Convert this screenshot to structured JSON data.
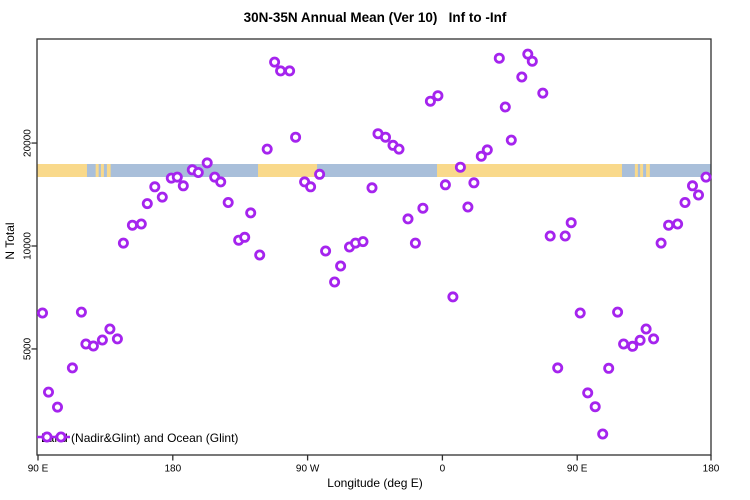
{
  "chart_data": {
    "type": "scatter",
    "title": "30N-35N Annual Mean (Ver 10)   Inf to -Inf",
    "xlabel": "Longitude (deg E)",
    "ylabel": "N Total",
    "x_axis": {
      "units": "deg E (wraps past 180 to 540)",
      "min": 89,
      "max": 540,
      "ticks": [
        {
          "lon": 90,
          "label": "90 E"
        },
        {
          "lon": 180,
          "label": "180"
        },
        {
          "lon": 270,
          "label": "90 W"
        },
        {
          "lon": 360,
          "label": "0"
        },
        {
          "lon": 450,
          "label": "90 E"
        },
        {
          "lon": 540,
          "label": "180"
        }
      ]
    },
    "y_axis": {
      "scale": "log",
      "min": 2450,
      "max": 40000,
      "ticks": [
        {
          "value": 5000,
          "label": "5000"
        },
        {
          "value": 10000,
          "label": "10000"
        },
        {
          "value": 20000,
          "label": "20000"
        }
      ]
    },
    "legend": {
      "label": "Land (Nadir&Glint) and Ocean (Glint)",
      "position": "bottom-left"
    },
    "marker": {
      "shape": "open-circle",
      "color": "#a524ee"
    },
    "map_strip": {
      "description": "land/ocean band at 30N-35N drawn across plot",
      "value_center": 16500,
      "ocean_color": "#a9bfda",
      "land_color": "#f9d98b",
      "land_segments_deg_e": [
        [
          89.0,
          122.7
        ],
        [
          128.5,
          130.5
        ],
        [
          132.0,
          134.0
        ],
        [
          136.0,
          138.5
        ],
        [
          236.9,
          276.3
        ],
        [
          356.4,
          479.9
        ],
        [
          488.5,
          490.5
        ],
        [
          492.0,
          494.0
        ],
        [
          496.0,
          498.5
        ]
      ]
    },
    "points": [
      [
        147,
        10200
      ],
      [
        153,
        11500
      ],
      [
        159,
        11600
      ],
      [
        163,
        13300
      ],
      [
        168,
        14900
      ],
      [
        173,
        13900
      ],
      [
        179,
        15800
      ],
      [
        183,
        15900
      ],
      [
        187,
        15000
      ],
      [
        193,
        16700
      ],
      [
        197,
        16400
      ],
      [
        203,
        17500
      ],
      [
        208,
        15900
      ],
      [
        212,
        15400
      ],
      [
        217,
        13400
      ],
      [
        224,
        10400
      ],
      [
        228,
        10600
      ],
      [
        232,
        12500
      ],
      [
        243,
        19200
      ],
      [
        248,
        34500
      ],
      [
        252,
        32500
      ],
      [
        258,
        32500
      ],
      [
        262,
        20800
      ],
      [
        268,
        15400
      ],
      [
        272,
        14900
      ],
      [
        278,
        16200
      ],
      [
        282,
        9670
      ],
      [
        298,
        9930
      ],
      [
        302,
        10200
      ],
      [
        307,
        10300
      ],
      [
        313,
        14800
      ],
      [
        317,
        21300
      ],
      [
        322,
        20800
      ],
      [
        327,
        19700
      ],
      [
        331,
        19200
      ],
      [
        337,
        12000
      ],
      [
        342,
        10200
      ],
      [
        347,
        12900
      ],
      [
        352,
        26500
      ],
      [
        357,
        27500
      ],
      [
        362,
        15100
      ],
      [
        372,
        17000
      ],
      [
        377,
        13000
      ],
      [
        381,
        15300
      ],
      [
        386,
        18300
      ],
      [
        390,
        19100
      ],
      [
        398,
        35400
      ],
      [
        402,
        25500
      ],
      [
        406,
        20400
      ],
      [
        413,
        31200
      ],
      [
        417,
        36400
      ],
      [
        420,
        34700
      ],
      [
        427,
        28000
      ],
      [
        432,
        10700
      ],
      [
        442,
        10700
      ],
      [
        446,
        11700
      ],
      [
        506,
        10200
      ],
      [
        511,
        11500
      ],
      [
        517,
        11600
      ],
      [
        522,
        13400
      ],
      [
        527,
        15000
      ],
      [
        531,
        14100
      ],
      [
        536,
        15900
      ],
      [
        93,
        6370
      ],
      [
        119,
        6410
      ],
      [
        138,
        5720
      ],
      [
        143,
        5350
      ],
      [
        122,
        5170
      ],
      [
        127,
        5100
      ],
      [
        133,
        5310
      ],
      [
        113,
        4400
      ],
      [
        97,
        3740
      ],
      [
        103,
        3380
      ],
      [
        238,
        9410
      ],
      [
        288,
        7850
      ],
      [
        292,
        8740
      ],
      [
        367,
        7100
      ],
      [
        452,
        6370
      ],
      [
        477,
        6410
      ],
      [
        496,
        5720
      ],
      [
        501,
        5350
      ],
      [
        481,
        5170
      ],
      [
        487,
        5090
      ],
      [
        492,
        5300
      ],
      [
        437,
        4400
      ],
      [
        471,
        4390
      ],
      [
        457,
        3720
      ],
      [
        462,
        3390
      ],
      [
        467,
        2820
      ]
    ],
    "frame_color": "#2f2f2f"
  }
}
